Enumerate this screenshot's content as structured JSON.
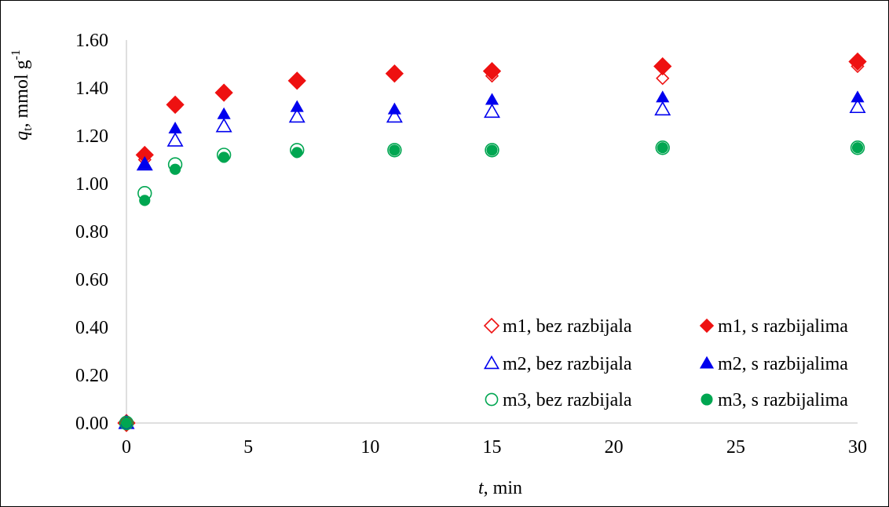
{
  "chart_data": {
    "type": "scatter",
    "title": "",
    "xlabel": {
      "var": "t",
      "unit": ", min"
    },
    "ylabel": {
      "var": "q",
      "sub": "t",
      "unit": ", mmol g",
      "sup": "-1"
    },
    "xlim": [
      0,
      30
    ],
    "ylim": [
      0,
      1.6
    ],
    "x_ticks": [
      "0",
      "5",
      "10",
      "15",
      "20",
      "25",
      "30"
    ],
    "y_ticks": [
      "0.00",
      "0.20",
      "0.40",
      "0.60",
      "0.80",
      "1.00",
      "1.20",
      "1.40",
      "1.60"
    ],
    "grid": false,
    "legend_position": "bottom-right",
    "series": [
      {
        "name": "m1, bez razbijala",
        "marker": "diamond",
        "filled": false,
        "color": "#ee1111",
        "x": [
          0,
          0.75,
          2,
          4,
          7,
          11,
          15,
          22,
          30
        ],
        "y": [
          0.0,
          1.1,
          1.32,
          1.38,
          1.43,
          1.46,
          1.45,
          1.44,
          1.49
        ]
      },
      {
        "name": "m1, s razbijalima",
        "marker": "diamond",
        "filled": true,
        "color": "#ee1111",
        "x": [
          0,
          0.75,
          2,
          4,
          7,
          11,
          15,
          22,
          30
        ],
        "y": [
          0.0,
          1.12,
          1.33,
          1.38,
          1.43,
          1.46,
          1.47,
          1.49,
          1.51
        ]
      },
      {
        "name": "m2, bez razbijala",
        "marker": "triangle",
        "filled": false,
        "color": "#0000ee",
        "x": [
          0,
          0.75,
          2,
          4,
          7,
          11,
          15,
          22,
          30
        ],
        "y": [
          0.0,
          1.08,
          1.18,
          1.24,
          1.28,
          1.28,
          1.3,
          1.31,
          1.32
        ]
      },
      {
        "name": "m2, s razbijalima",
        "marker": "triangle",
        "filled": true,
        "color": "#0000ee",
        "x": [
          0,
          0.75,
          2,
          4,
          7,
          11,
          15,
          22,
          30
        ],
        "y": [
          0.0,
          1.08,
          1.23,
          1.29,
          1.32,
          1.31,
          1.35,
          1.36,
          1.36
        ]
      },
      {
        "name": "m3, bez razbijala",
        "marker": "circle",
        "filled": false,
        "color": "#00a651",
        "x": [
          0,
          0.75,
          2,
          4,
          7,
          11,
          15,
          22,
          30
        ],
        "y": [
          0.0,
          0.96,
          1.08,
          1.12,
          1.14,
          1.14,
          1.14,
          1.15,
          1.15
        ]
      },
      {
        "name": "m3, s razbijalima",
        "marker": "circle",
        "filled": true,
        "color": "#00a651",
        "x": [
          0,
          0.75,
          2,
          4,
          7,
          11,
          15,
          22,
          30
        ],
        "y": [
          0.0,
          0.93,
          1.06,
          1.11,
          1.13,
          1.14,
          1.14,
          1.15,
          1.15
        ]
      }
    ]
  }
}
